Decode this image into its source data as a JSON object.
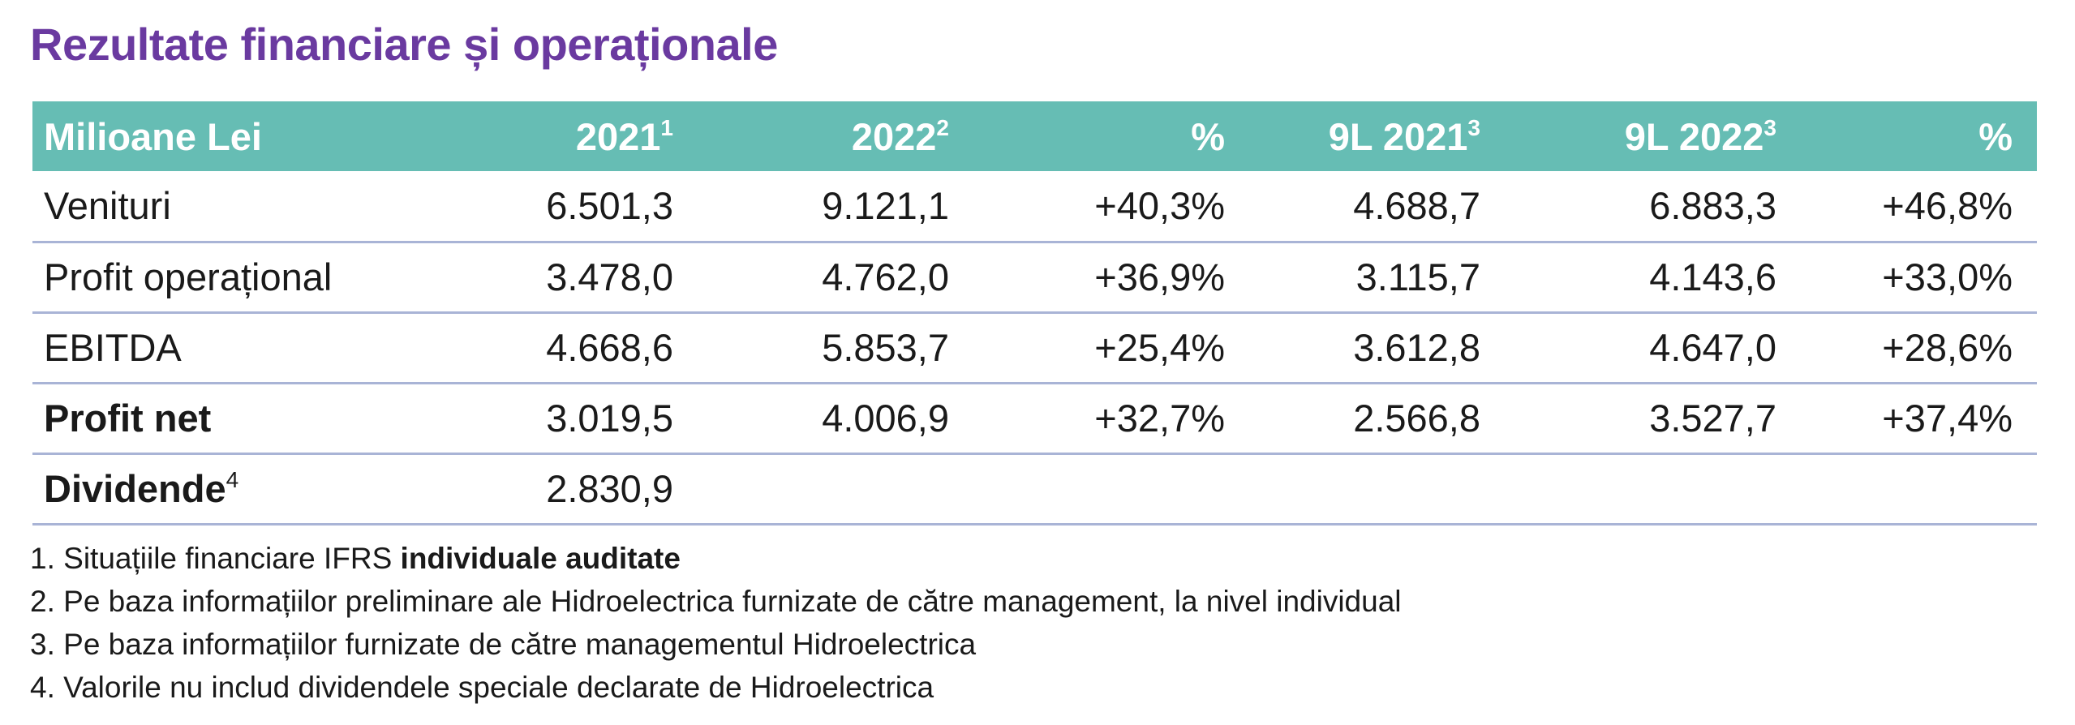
{
  "title": "Rezultate financiare și operaționale",
  "table": {
    "header": {
      "label": "Milioane Lei",
      "c1": "2021",
      "c1_sup": "1",
      "c2": "2022",
      "c2_sup": "2",
      "c3": "%",
      "c4": "9L 2021",
      "c4_sup": "3",
      "c5": "9L 2022",
      "c5_sup": "3",
      "c6": "%"
    },
    "rows": [
      {
        "label": "Venituri",
        "v1": "6.501,3",
        "v2": "9.121,1",
        "p1": "+40,3%",
        "v3": "4.688,7",
        "v4": "6.883,3",
        "p2": "+46,8%"
      },
      {
        "label": "Profit operațional",
        "v1": "3.478,0",
        "v2": "4.762,0",
        "p1": "+36,9%",
        "v3": "3.115,7",
        "v4": "4.143,6",
        "p2": "+33,0%"
      },
      {
        "label": "EBITDA",
        "v1": "4.668,6",
        "v2": "5.853,7",
        "p1": "+25,4%",
        "v3": "3.612,8",
        "v4": "4.647,0",
        "p2": "+28,6%"
      },
      {
        "label": "Profit net",
        "v1": "3.019,5",
        "v2": "4.006,9",
        "p1": "+32,7%",
        "v3": "2.566,8",
        "v4": "3.527,7",
        "p2": "+37,4%"
      },
      {
        "label": "Dividende",
        "label_sup": "4",
        "v1": "2.830,9"
      }
    ]
  },
  "notes": {
    "n1_a": "1. Situațiile financiare IFRS ",
    "n1_b": "individuale auditate",
    "n2": "2. Pe baza informațiilor preliminare ale Hidroelectrica furnizate de către management, la nivel individual",
    "n3": "3. Pe baza informațiilor furnizate de către managementul Hidroelectrica",
    "n4": "4. Valorile nu includ dividendele speciale declarate de Hidroelectrica"
  }
}
